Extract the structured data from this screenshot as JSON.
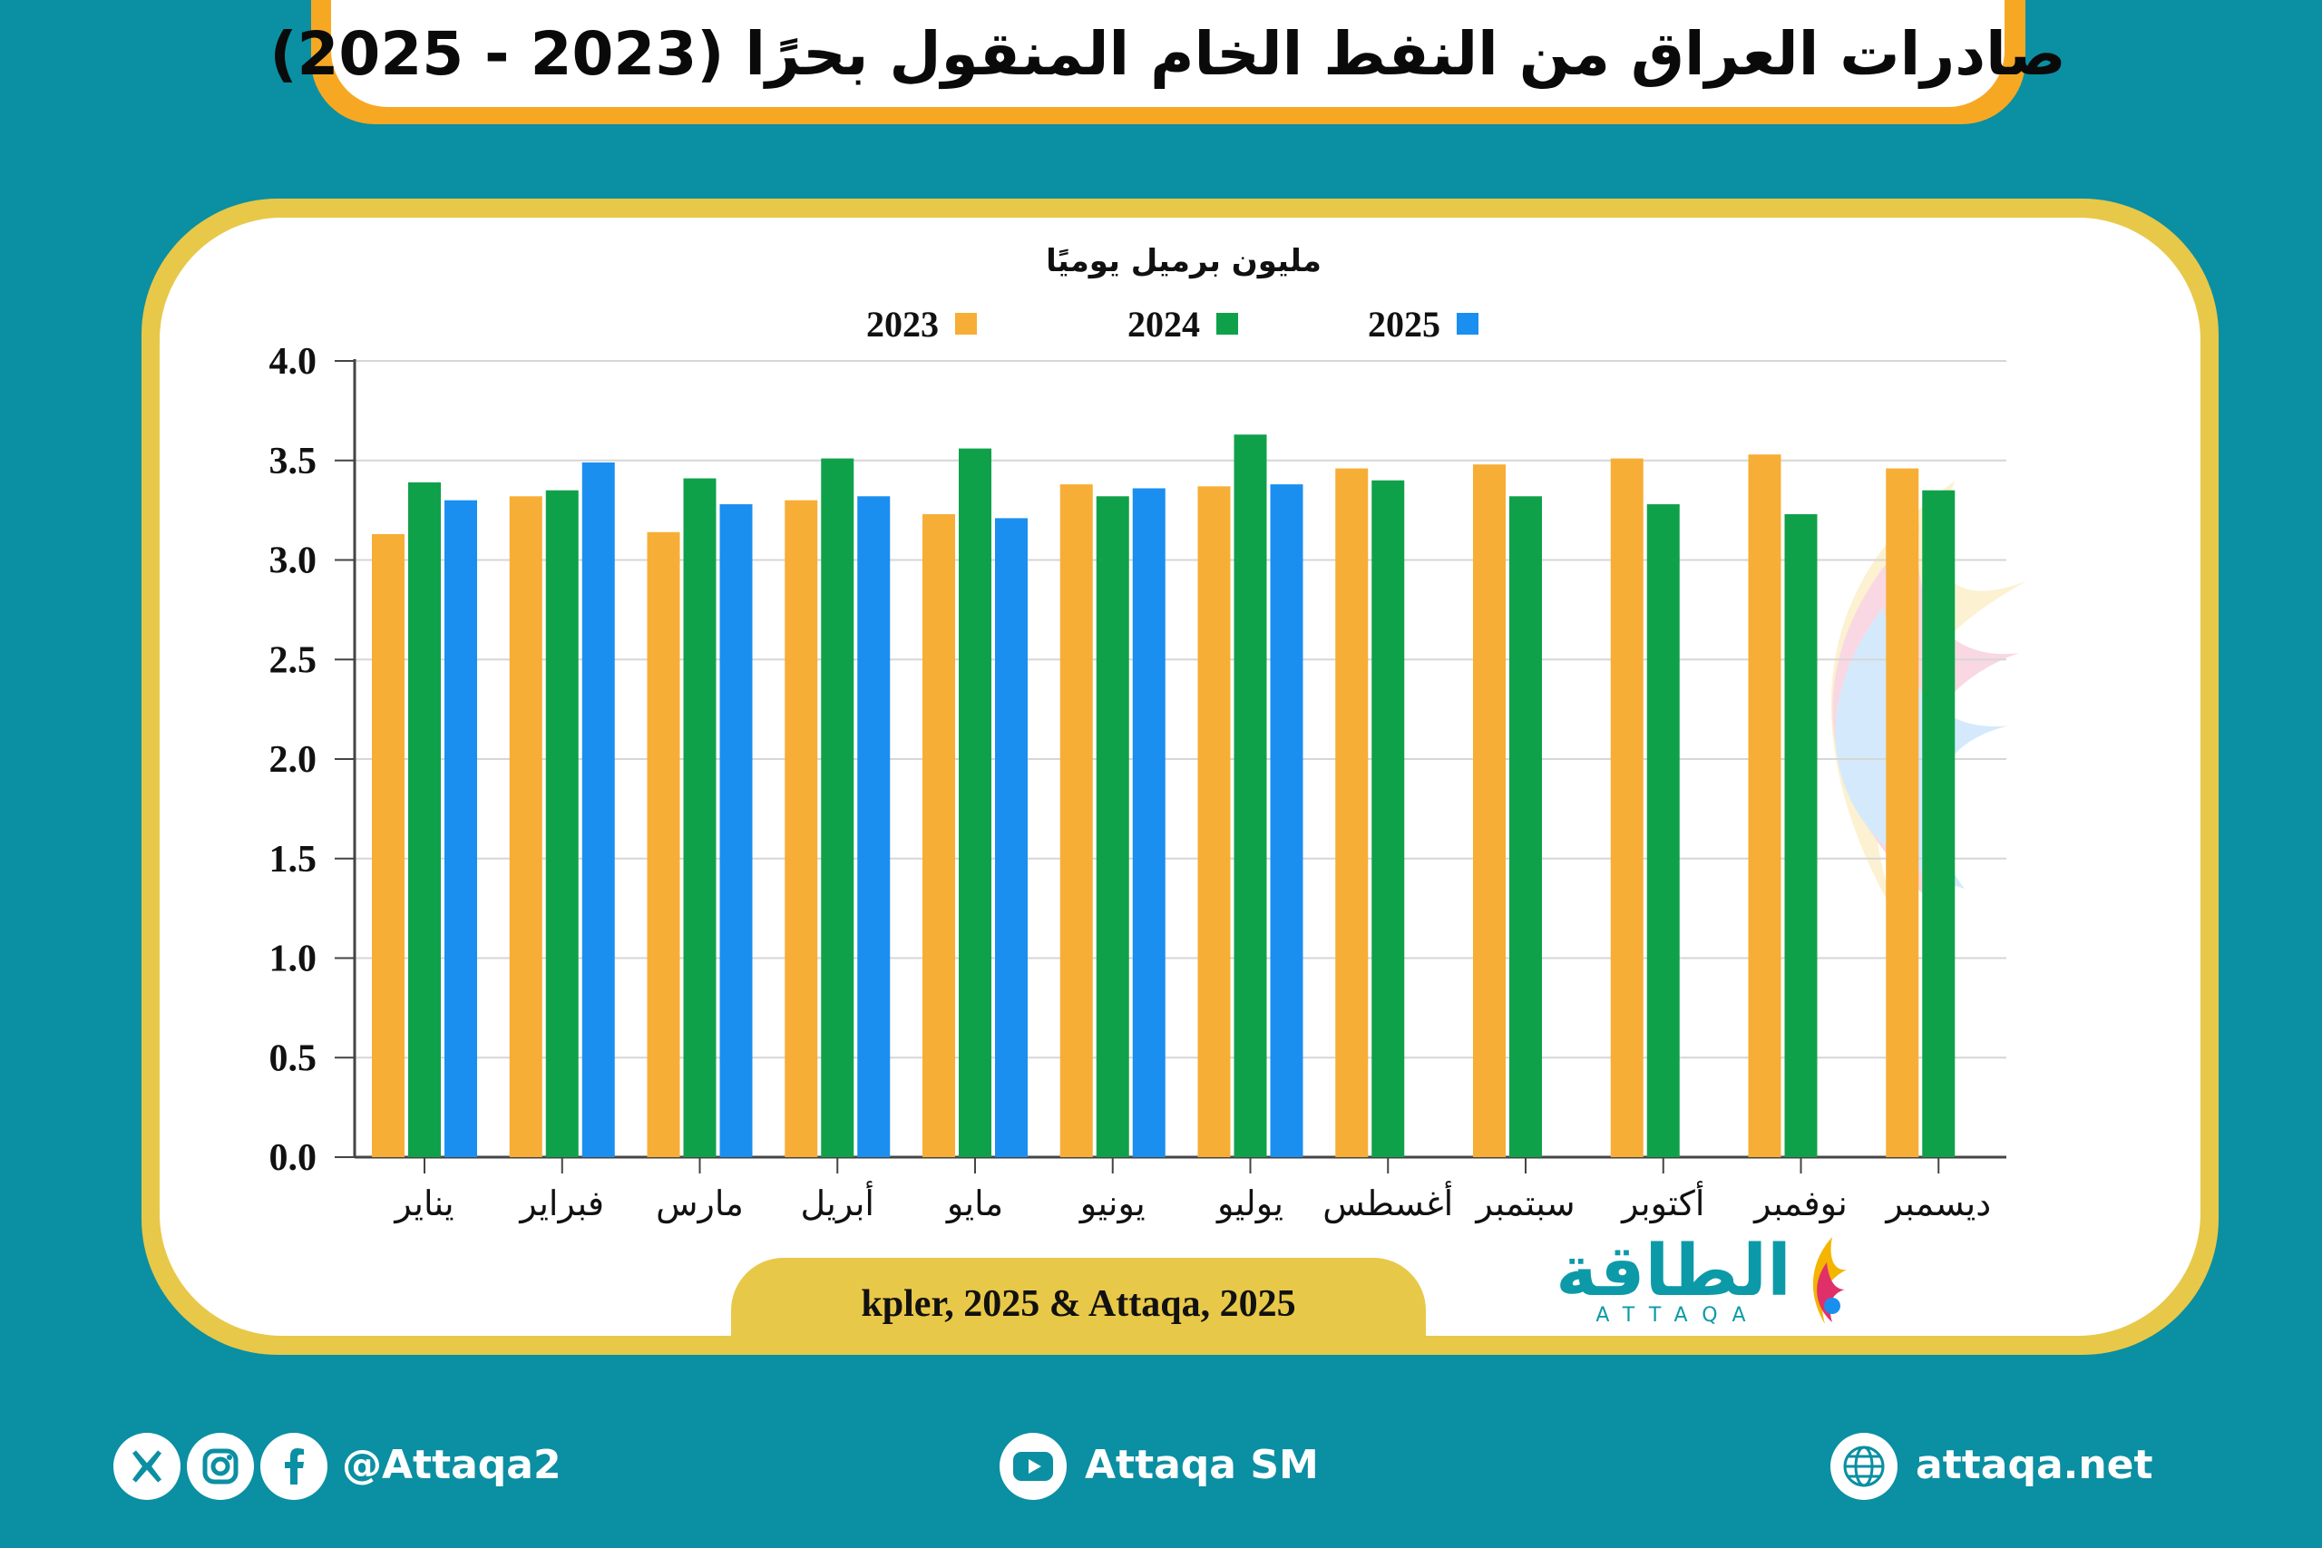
{
  "title": "صادرات العراق من النفط الخام المنقول بحرًا (2023 - 2025)",
  "colors": {
    "series_2023": "#f7ae36",
    "series_2024": "#0fa14a",
    "series_2025": "#1a8ff0",
    "accent": "#e8c849",
    "background": "#0b8fa2"
  },
  "chart_data": {
    "type": "bar",
    "ylabel": "مليون برميل يوميًا",
    "ylim": [
      0,
      4
    ],
    "yticks": [
      "0.0",
      "0.5",
      "1.0",
      "1.5",
      "2.0",
      "2.5",
      "3.0",
      "3.5",
      "4.0"
    ],
    "grid": true,
    "legend_position": "top",
    "categories": [
      "يناير",
      "فبراير",
      "مارس",
      "أبريل",
      "مايو",
      "يونيو",
      "يوليو",
      "أغسطس",
      "سبتمبر",
      "أكتوبر",
      "نوفمبر",
      "ديسمبر"
    ],
    "series": [
      {
        "name": "2023",
        "values": [
          3.13,
          3.32,
          3.14,
          3.3,
          3.23,
          3.38,
          3.37,
          3.46,
          3.48,
          3.51,
          3.53,
          3.46
        ]
      },
      {
        "name": "2024",
        "values": [
          3.39,
          3.35,
          3.41,
          3.51,
          3.56,
          3.32,
          3.63,
          3.4,
          3.32,
          3.28,
          3.23,
          3.35
        ]
      },
      {
        "name": "2025",
        "values": [
          3.3,
          3.49,
          3.28,
          3.32,
          3.21,
          3.36,
          3.38,
          null,
          null,
          null,
          null,
          null
        ]
      }
    ]
  },
  "source": "kpler, 2025 & Attaqa, 2025",
  "brand": {
    "name_ar": "الطاقة",
    "name_latin": "ATTAQA"
  },
  "footer": {
    "handle": "@Attaqa2",
    "youtube": "Attaqa SM",
    "website": "attaqa.net"
  },
  "icons": [
    "x-icon",
    "instagram-icon",
    "facebook-icon",
    "youtube-icon",
    "globe-icon"
  ]
}
